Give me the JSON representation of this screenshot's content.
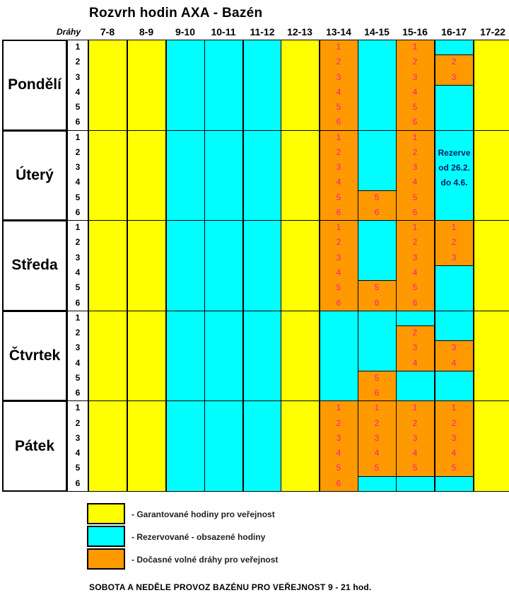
{
  "title": "Rozvrh  hodin  AXA - Bazén",
  "lanes_label": "Dráhy",
  "hours": [
    "7-8",
    "8-9",
    "9-10",
    "10-11",
    "11-12",
    "12-13",
    "13-14",
    "14-15",
    "15-16",
    "16-17",
    "17-22"
  ],
  "lane_numbers": [
    "1",
    "2",
    "3",
    "4",
    "5",
    "6"
  ],
  "days": [
    {
      "name": "Pondělí",
      "cols": [
        [
          [
            "y",
            1,
            6
          ]
        ],
        [
          [
            "y",
            1,
            6
          ]
        ],
        [
          [
            "c",
            1,
            6
          ]
        ],
        [
          [
            "c",
            1,
            6
          ]
        ],
        [
          [
            "c",
            1,
            6
          ]
        ],
        [
          [
            "y",
            1,
            6
          ]
        ],
        [
          [
            "o",
            1,
            6,
            true
          ]
        ],
        [
          [
            "c",
            1,
            6
          ]
        ],
        [
          [
            "o",
            1,
            6,
            true
          ]
        ],
        [
          [
            "c",
            1,
            1
          ],
          [
            "o",
            2,
            3,
            true
          ],
          [
            "c",
            4,
            6
          ]
        ],
        [
          [
            "y",
            1,
            6
          ]
        ]
      ]
    },
    {
      "name": "Úterý",
      "cols": [
        [
          [
            "y",
            1,
            6
          ]
        ],
        [
          [
            "y",
            1,
            6
          ]
        ],
        [
          [
            "c",
            1,
            6
          ]
        ],
        [
          [
            "c",
            1,
            6
          ]
        ],
        [
          [
            "c",
            1,
            6
          ]
        ],
        [
          [
            "y",
            1,
            6
          ]
        ],
        [
          [
            "o",
            1,
            6,
            true
          ]
        ],
        [
          [
            "c",
            1,
            4
          ],
          [
            "o",
            5,
            6,
            true
          ]
        ],
        [
          [
            "o",
            1,
            6,
            true
          ]
        ],
        [
          [
            "c",
            1,
            6
          ]
        ],
        [
          [
            "y",
            1,
            6
          ]
        ]
      ]
    },
    {
      "name": "Středa",
      "cols": [
        [
          [
            "y",
            1,
            6
          ]
        ],
        [
          [
            "y",
            1,
            6
          ]
        ],
        [
          [
            "c",
            1,
            6
          ]
        ],
        [
          [
            "c",
            1,
            6
          ]
        ],
        [
          [
            "c",
            1,
            6
          ]
        ],
        [
          [
            "y",
            1,
            6
          ]
        ],
        [
          [
            "o",
            1,
            6,
            true
          ]
        ],
        [
          [
            "c",
            1,
            4
          ],
          [
            "o",
            5,
            6,
            true
          ]
        ],
        [
          [
            "o",
            1,
            6,
            true
          ]
        ],
        [
          [
            "o",
            1,
            3,
            true
          ],
          [
            "c",
            4,
            6
          ]
        ],
        [
          [
            "y",
            1,
            6
          ]
        ]
      ]
    },
    {
      "name": "Čtvrtek",
      "cols": [
        [
          [
            "y",
            1,
            6
          ]
        ],
        [
          [
            "y",
            1,
            6
          ]
        ],
        [
          [
            "c",
            1,
            6
          ]
        ],
        [
          [
            "c",
            1,
            6
          ]
        ],
        [
          [
            "c",
            1,
            6
          ]
        ],
        [
          [
            "y",
            1,
            6
          ]
        ],
        [
          [
            "c",
            1,
            6
          ]
        ],
        [
          [
            "c",
            1,
            4
          ],
          [
            "o",
            5,
            6,
            true
          ]
        ],
        [
          [
            "c",
            1,
            1
          ],
          [
            "o",
            2,
            4,
            true
          ],
          [
            "c",
            5,
            6
          ]
        ],
        [
          [
            "c",
            1,
            2
          ],
          [
            "o",
            3,
            4,
            true
          ],
          [
            "c",
            5,
            6
          ]
        ],
        [
          [
            "y",
            1,
            6
          ]
        ]
      ]
    },
    {
      "name": "Pátek",
      "cols": [
        [
          [
            "y",
            1,
            6
          ]
        ],
        [
          [
            "y",
            1,
            6
          ]
        ],
        [
          [
            "c",
            1,
            6
          ]
        ],
        [
          [
            "c",
            1,
            6
          ]
        ],
        [
          [
            "c",
            1,
            6
          ]
        ],
        [
          [
            "y",
            1,
            6
          ]
        ],
        [
          [
            "o",
            1,
            6,
            true
          ]
        ],
        [
          [
            "o",
            1,
            5,
            true
          ],
          [
            "c",
            6,
            6
          ]
        ],
        [
          [
            "o",
            1,
            5,
            true
          ],
          [
            "c",
            6,
            6
          ]
        ],
        [
          [
            "o",
            1,
            5,
            true
          ],
          [
            "c",
            6,
            6
          ]
        ],
        [
          [
            "y",
            1,
            6
          ]
        ]
      ]
    }
  ],
  "reserve_note": [
    "Rezerve",
    "od 26.2.",
    "do 4.6."
  ],
  "legend": [
    {
      "color": "#ffff00",
      "text": "- Garantované hodiny pro veřejnost"
    },
    {
      "color": "#00ffff",
      "text": "- Rezervované - obsazené hodiny"
    },
    {
      "color": "#ff9900",
      "text": "- Dočasné volné dráhy pro veřejnost"
    }
  ],
  "footer": "SOBOTA A NEDĚLE PROVOZ BAZÉNU PRO VEŘEJNOST  9 - 21 hod."
}
